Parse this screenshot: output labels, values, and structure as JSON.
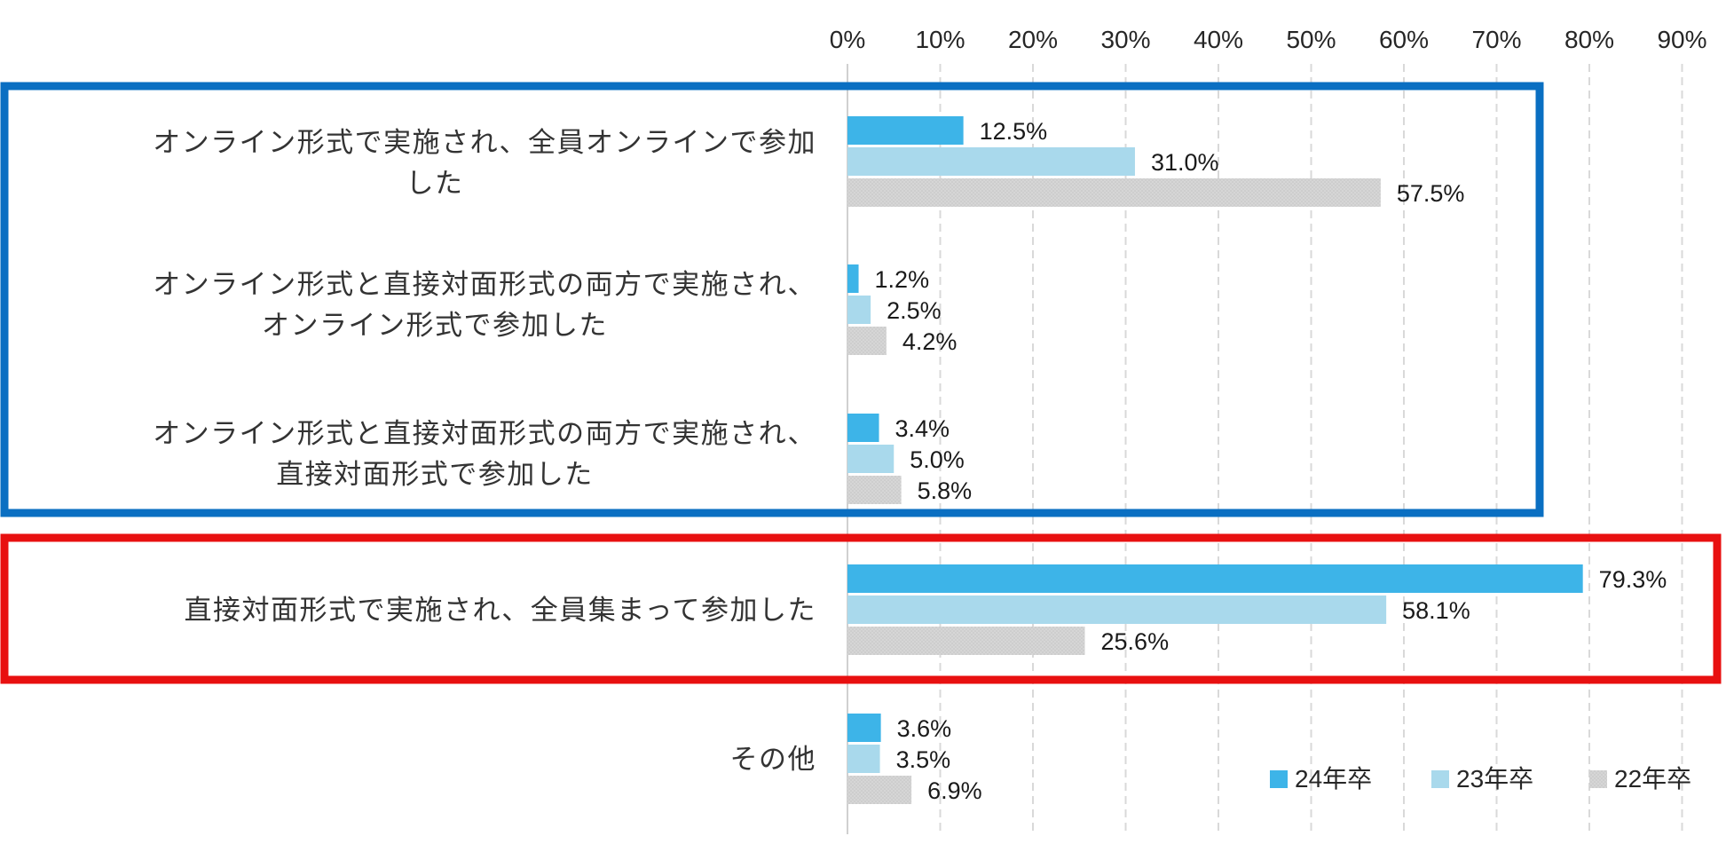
{
  "chart_data": {
    "type": "bar",
    "orientation": "horizontal",
    "title": "",
    "xlabel": "",
    "ylabel": "",
    "xlim": [
      0,
      90
    ],
    "x_ticks": [
      0,
      10,
      20,
      30,
      40,
      50,
      60,
      70,
      80,
      90
    ],
    "x_tick_labels": [
      "0%",
      "10%",
      "20%",
      "30%",
      "40%",
      "50%",
      "60%",
      "70%",
      "80%",
      "90%"
    ],
    "x_axis_position": "top",
    "grid": true,
    "legend_position": "bottom-right",
    "categories": [
      [
        "オンライン形式で実施され、全員オンラインで参加",
        "した"
      ],
      [
        "オンライン形式と直接対面形式の両方で実施され、",
        "オンライン形式で参加した"
      ],
      [
        "オンライン形式と直接対面形式の両方で実施され、",
        "直接対面形式で参加した"
      ],
      [
        "直接対面形式で実施され、全員集まって参加した"
      ],
      [
        "その他"
      ]
    ],
    "series": [
      {
        "name": "24年卒",
        "color": "#3db4e8",
        "values": [
          12.5,
          1.2,
          3.4,
          79.3,
          3.6
        ],
        "labels": [
          "12.5%",
          "1.2%",
          "3.4%",
          "79.3%",
          "3.6%"
        ]
      },
      {
        "name": "23年卒",
        "color": "#a9d9ec",
        "values": [
          31.0,
          2.5,
          5.0,
          58.1,
          3.5
        ],
        "labels": [
          "31.0%",
          "2.5%",
          "5.0%",
          "58.1%",
          "3.5%"
        ]
      },
      {
        "name": "22年卒",
        "color": "#d6d6d6",
        "values": [
          57.5,
          4.2,
          5.8,
          25.6,
          6.9
        ],
        "labels": [
          "57.5%",
          "4.2%",
          "5.8%",
          "25.6%",
          "6.9%"
        ]
      }
    ],
    "highlights": [
      {
        "name": "online-group-box",
        "color": "#0a6fc2",
        "categories": [
          0,
          1,
          2
        ]
      },
      {
        "name": "in-person-box",
        "color": "#e81010",
        "categories": [
          3
        ]
      }
    ]
  }
}
